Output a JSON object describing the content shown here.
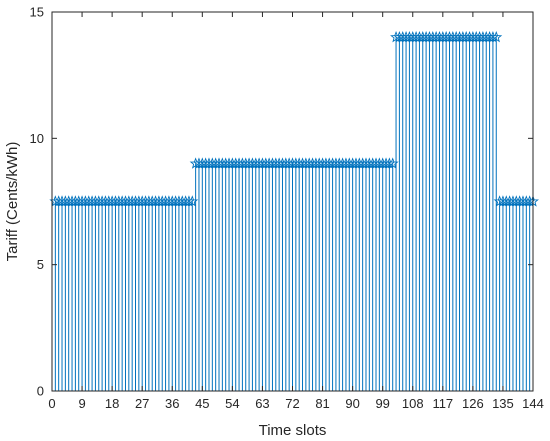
{
  "chart_data": {
    "type": "stem",
    "xlabel": "Time slots",
    "ylabel": "Tariff (Cents/kWh)",
    "xlim": [
      0,
      144
    ],
    "ylim": [
      0,
      15
    ],
    "xticks": [
      0,
      9,
      18,
      27,
      36,
      45,
      54,
      63,
      72,
      81,
      90,
      99,
      108,
      117,
      126,
      135,
      144
    ],
    "yticks": [
      0,
      5,
      10,
      15
    ],
    "marker": "pentagram",
    "grid": false,
    "legend": "none",
    "colors": {
      "series": "#0072BD",
      "axis": "#262626",
      "background": "#ffffff"
    },
    "segments": [
      {
        "from": 1,
        "to": 42,
        "value": 7.5
      },
      {
        "from": 43,
        "to": 102,
        "value": 9
      },
      {
        "from": 103,
        "to": 133,
        "value": 14
      },
      {
        "from": 134,
        "to": 144,
        "value": 7.5
      }
    ]
  }
}
